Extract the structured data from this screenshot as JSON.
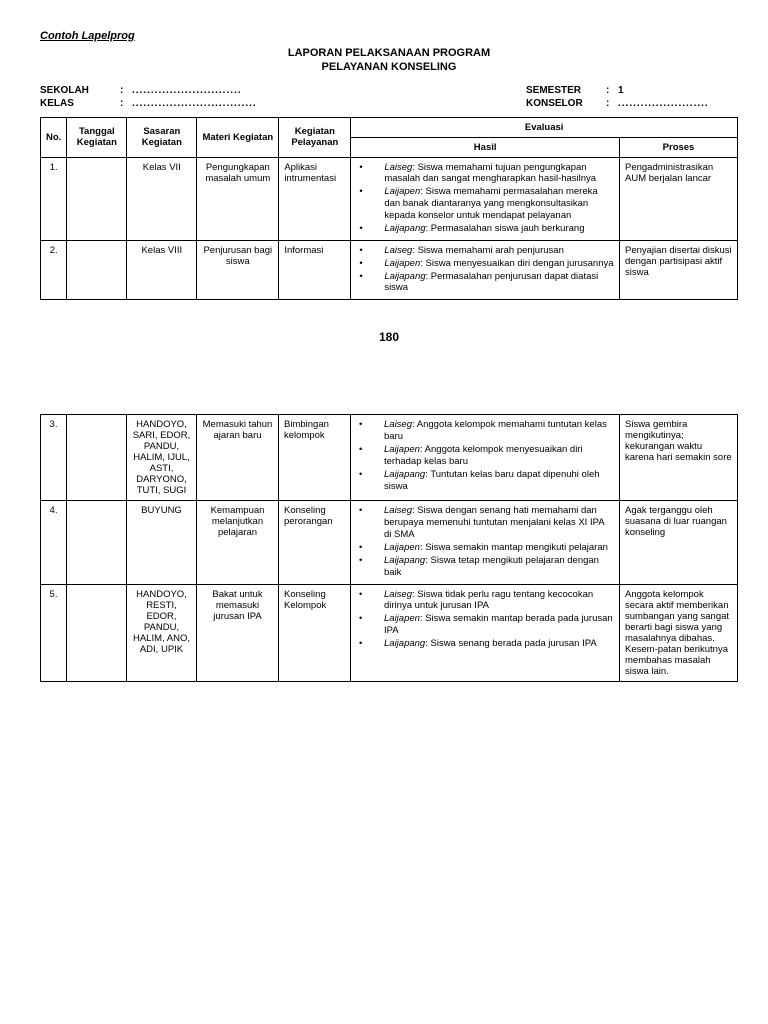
{
  "docLabel": "Contoh Lapelprog",
  "title1": "LAPORAN PELAKSANAAN PROGRAM",
  "title2": "PELAYANAN KONSELING",
  "meta": {
    "sekolahLabel": "SEKOLAH",
    "sekolahVal": ".............................",
    "kelasLabel": "KELAS",
    "kelasVal": ".................................",
    "semesterLabel": "SEMESTER",
    "semesterVal": "1",
    "konselorLabel": "KONSELOR",
    "konselorVal": "........................"
  },
  "headers": {
    "no": "No.",
    "tanggal": "Tanggal Kegiatan",
    "sasaran": "Sasaran Kegiatan",
    "materi": "Materi Kegiatan",
    "kegiatan": "Kegiatan Pelayanan",
    "evaluasi": "Evaluasi",
    "hasil": "Hasil",
    "proses": "Proses"
  },
  "pageNum": "180",
  "rows": [
    {
      "no": "1.",
      "tanggal": "",
      "sasaran": "Kelas VII",
      "materi": "Pengungkapan masalah umum",
      "kegiatan": "Aplikasi intrumentasi",
      "hasil": [
        {
          "term": "Laiseg",
          "text": ": Siswa memahami tujuan pengungkapan masalah dan sangat mengharapkan hasil-hasilnya"
        },
        {
          "term": "Laijapen",
          "text": ": Siswa memahami permasalahan mereka dan banak diantaranya yang mengkonsultasikan kepada konselor untuk mendapat pelayanan"
        },
        {
          "term": "Laijapang",
          "text": ": Permasalahan siswa jauh berkurang"
        }
      ],
      "proses": "Pengadministrasikan AUM berjalan lancar"
    },
    {
      "no": "2.",
      "tanggal": "",
      "sasaran": "Kelas VIII",
      "materi": "Penjurusan bagi siswa",
      "kegiatan": "Informasi",
      "hasil": [
        {
          "term": "Laiseg",
          "text": ": Siswa memahami arah penjurusan"
        },
        {
          "term": "Laijapen",
          "text": ": Siswa menyesuaikan diri dengan jurusannya"
        },
        {
          "term": "Laijapang",
          "text": ": Permasalahan penjurusan dapat diatasi siswa"
        }
      ],
      "proses": "Penyajian disertai diskusi dengan partisipasi aktif siswa"
    },
    {
      "no": "3.",
      "tanggal": "",
      "sasaran": "HANDOYO, SARI, EDOR, PANDU, HALIM, IJUL, ASTI, DARYONO, TUTI, SUGI",
      "materi": "Memasuki tahun ajaran baru",
      "kegiatan": "Bimbingan kelompok",
      "hasil": [
        {
          "term": "Laiseg",
          "text": ": Anggota kelompok memahami tuntutan kelas baru"
        },
        {
          "term": "Laijapen",
          "text": ": Anggota kelompok menyesuaikan diri terhadap kelas baru"
        },
        {
          "term": "Laijapang",
          "text": ": Tuntutan kelas baru dapat dipenuhi oleh siswa"
        }
      ],
      "proses": "Siswa gembira mengikutinya; kekurangan waktu karena hari semakin sore"
    },
    {
      "no": "4.",
      "tanggal": "",
      "sasaran": "BUYUNG",
      "materi": "Kemampuan melanjutkan pelajaran",
      "kegiatan": "Konseling perorangan",
      "hasil": [
        {
          "term": "Laiseg",
          "text": ": Siswa dengan senang hati memahami dan berupaya memenuhi tuntutan menjalani kelas XI IPA di SMA"
        },
        {
          "term": "Laijapen",
          "text": ": Siswa semakin mantap mengikuti pelajaran"
        },
        {
          "term": "Laijapang",
          "text": ": Siswa tetap mengikuti pelajaran dengan baik"
        }
      ],
      "proses": "Agak terganggu oleh suasana di luar ruangan konseling"
    },
    {
      "no": "5.",
      "tanggal": "",
      "sasaran": "HANDOYO, RESTI, EDOR, PANDU, HALIM, ANO, ADI, UPIK",
      "materi": "Bakat untuk memasuki jurusan IPA",
      "kegiatan": "Konseling Kelompok",
      "hasil": [
        {
          "term": "Laiseg",
          "text": ": Siswa tidak perlu ragu tentang kecocokan dirinya untuk jurusan IPA"
        },
        {
          "term": "Laijapen",
          "text": ": Siswa semakin mantap berada pada jurusan IPA"
        },
        {
          "term": "Laijapang",
          "text": ": Siswa senang berada pada jurusan IPA"
        }
      ],
      "proses": "Anggota kelompok secara aktif memberikan sumbangan yang sangat berarti bagi siswa yang masalahnya dibahas. Kesem-patan berikutnya membahas masalah siswa lain."
    }
  ]
}
